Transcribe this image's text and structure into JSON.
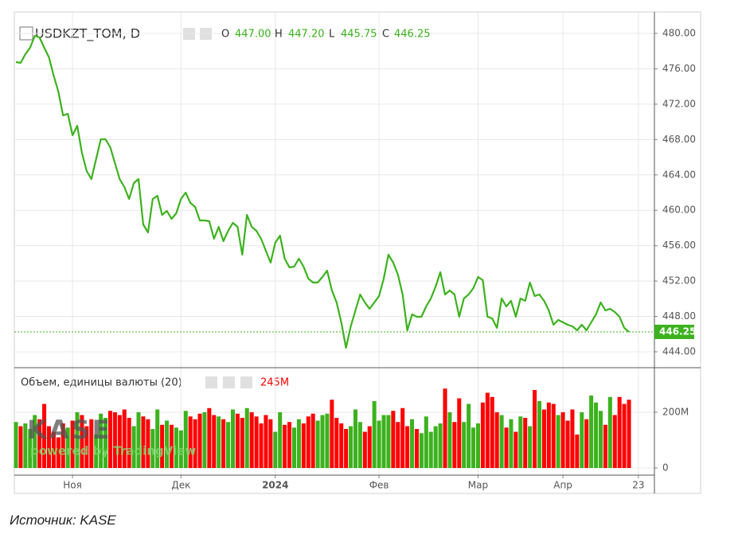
{
  "chart_data": {
    "type": "line",
    "title": "USDKZT_TOM, D",
    "ohlc": {
      "labels": [
        "O",
        "H",
        "L",
        "C"
      ],
      "values": [
        447,
        447.2,
        445.75,
        446.25
      ],
      "value_labels": [
        "447.00",
        "447.20",
        "445.75",
        "446.25"
      ]
    },
    "color": "#3cb21e",
    "values": [
      476.76,
      476.67,
      477.66,
      478.38,
      479.73,
      479.55,
      478.38,
      477.3,
      475.23,
      473.43,
      470.73,
      470.91,
      468.48,
      469.56,
      466.5,
      464.43,
      463.53,
      465.78,
      468.03,
      468.03,
      467.13,
      465.33,
      463.53,
      462.63,
      461.28,
      463.08,
      463.53,
      458.4,
      457.5,
      461.28,
      461.64,
      459.48,
      459.93,
      459.03,
      459.66,
      461.28,
      462.0,
      460.83,
      460.38,
      458.85,
      458.85,
      458.76,
      456.78,
      458.13,
      456.51,
      457.68,
      458.58,
      458.13,
      454.98,
      459.48,
      458.13,
      457.68,
      456.78,
      455.43,
      454.08,
      456.33,
      457.14,
      454.53,
      453.54,
      453.63,
      454.53,
      453.63,
      452.28,
      451.83,
      451.83,
      452.46,
      453.18,
      450.93,
      449.58,
      447.33,
      444.45,
      446.88,
      448.68,
      450.48,
      449.58,
      448.86,
      449.58,
      450.3,
      452.28,
      454.98,
      454.08,
      452.73,
      450.48,
      446.43,
      448.23,
      447.96,
      447.96,
      449.13,
      450.03,
      451.38,
      453.0,
      450.48,
      450.93,
      450.48,
      447.96,
      450.03,
      450.48,
      451.2,
      452.46,
      452.1,
      447.96,
      447.78,
      446.7,
      450.03,
      449.13,
      449.76,
      447.96,
      450.03,
      449.76,
      451.83,
      450.3,
      450.48,
      449.76,
      448.68,
      447.06,
      447.6,
      447.33,
      447.06,
      446.88,
      446.43,
      447.06,
      446.43,
      447.33,
      448.23,
      449.58,
      448.68,
      448.86,
      448.5,
      447.96,
      446.7,
      446.25
    ],
    "xlim": [
      -0.34,
      135.4
    ],
    "xticks": [
      {
        "value": 12,
        "label": "Ноя"
      },
      {
        "value": 35,
        "label": "Дек"
      },
      {
        "value": 55,
        "label": "2024"
      },
      {
        "value": 77,
        "label": "Фев"
      },
      {
        "value": 98,
        "label": "Мар"
      },
      {
        "value": 116,
        "label": "Апр"
      },
      {
        "value": 132,
        "label": "23"
      }
    ],
    "ylim": [
      442.2,
      482.43
    ],
    "yticks": [
      {
        "value": 444,
        "label": "444.00"
      },
      {
        "value": 448,
        "label": "448.00"
      },
      {
        "value": 452,
        "label": "452.00"
      },
      {
        "value": 456,
        "label": "456.00"
      },
      {
        "value": 460,
        "label": "460.00"
      },
      {
        "value": 464,
        "label": "464.00"
      },
      {
        "value": 468,
        "label": "468.00"
      },
      {
        "value": 472,
        "label": "472.00"
      },
      {
        "value": 476,
        "label": "476.00"
      },
      {
        "value": 480,
        "label": "480.00"
      }
    ],
    "grid": true,
    "volume": {
      "label": "Объем, единицы валюты (20)",
      "last_value_label": "245M",
      "up_color": "#3cb21e",
      "down_color": "#ff0000",
      "values": [
        165,
        150,
        160,
        140,
        190,
        175,
        230,
        150,
        130,
        110,
        160,
        145,
        170,
        200,
        190,
        150,
        175,
        120,
        195,
        180,
        205,
        200,
        190,
        210,
        180,
        150,
        200,
        185,
        175,
        140,
        210,
        155,
        170,
        155,
        145,
        135,
        205,
        185,
        175,
        195,
        200,
        215,
        190,
        185,
        175,
        165,
        210,
        195,
        180,
        215,
        200,
        185,
        160,
        190,
        175,
        130,
        200,
        155,
        165,
        145,
        175,
        160,
        185,
        195,
        170,
        190,
        195,
        245,
        180,
        160,
        140,
        150,
        210,
        165,
        130,
        150,
        240,
        170,
        190,
        190,
        205,
        165,
        215,
        150,
        175,
        140,
        125,
        185,
        130,
        150,
        160,
        285,
        200,
        165,
        250,
        165,
        230,
        145,
        160,
        235,
        270,
        255,
        200,
        190,
        145,
        175,
        130,
        185,
        180,
        150,
        280,
        240,
        210,
        235,
        230,
        190,
        200,
        170,
        210,
        120,
        200,
        175,
        260,
        235,
        205,
        155,
        255,
        190,
        255,
        230,
        245
      ],
      "ylim": [
        -25.7,
        360
      ],
      "yticks": [
        0,
        {
          "value": 200,
          "label": "200M"
        }
      ]
    },
    "watermark": {
      "logo": "KASE",
      "text": "powered by TradingView"
    },
    "source": "Источник: KASE"
  }
}
